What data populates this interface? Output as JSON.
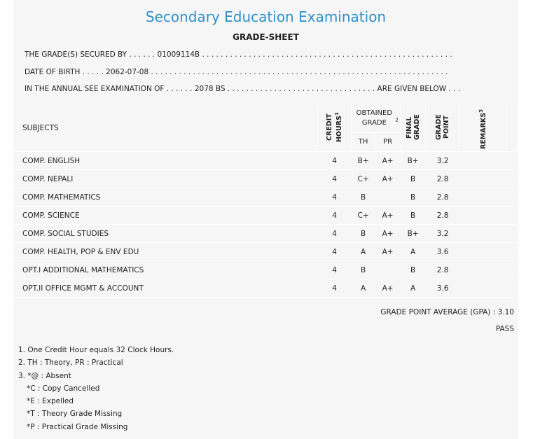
{
  "title": "Secondary Education Examination",
  "subtitle": "GRADE-SHEET",
  "info": {
    "line1": "THE GRADE(S) SECURED BY . . . . . . 01009114B . . . . . . . . . . . . . . . . . . . . . . . . . . . . . . . . . . . . . . . . . . . . . . . . . . . . . .",
    "line2": "DATE OF BIRTH . . . . . 2062-07-08 . . . . . . . . . . . . . . . . . . . . . . . . . . . . . . . . . . . . . . . . . . . . . . . . . . . . . . . . . . . . . . . .",
    "line3": "IN THE ANNUAL SEE EXAMINATION OF . . . . . . 2078 BS . . . . . . . . . . . . . . . . . . . . . . . . . . . . . . . . ARE GIVEN BELOW . . ."
  },
  "headers": {
    "subjects": "SUBJECTS",
    "credit_hours": "CREDIT HOURS",
    "credit_sup": "1",
    "obtained_grade": "OBTAINED GRADE",
    "obtained_sup": "2",
    "th": "TH",
    "pr": "PR",
    "final_grade": "FINAL GRADE",
    "grade_point": "GRADE POINT",
    "remarks": "REMARKS",
    "remarks_sup": "3"
  },
  "rows": [
    {
      "subject": "COMP. ENGLISH",
      "credit": "4",
      "th": "B+",
      "pr": "A+",
      "final": "B+",
      "gp": "3.2",
      "remarks": ""
    },
    {
      "subject": "COMP. NEPALI",
      "credit": "4",
      "th": "C+",
      "pr": "A+",
      "final": "B",
      "gp": "2.8",
      "remarks": ""
    },
    {
      "subject": "COMP. MATHEMATICS",
      "credit": "4",
      "th": "B",
      "pr": "",
      "final": "B",
      "gp": "2.8",
      "remarks": ""
    },
    {
      "subject": "COMP. SCIENCE",
      "credit": "4",
      "th": "C+",
      "pr": "A+",
      "final": "B",
      "gp": "2.8",
      "remarks": ""
    },
    {
      "subject": "COMP. SOCIAL STUDIES",
      "credit": "4",
      "th": "B",
      "pr": "A+",
      "final": "B+",
      "gp": "3.2",
      "remarks": ""
    },
    {
      "subject": "COMP. HEALTH, POP & ENV EDU",
      "credit": "4",
      "th": "A",
      "pr": "A+",
      "final": "A",
      "gp": "3.6",
      "remarks": ""
    },
    {
      "subject": "OPT.I ADDITIONAL MATHEMATICS",
      "credit": "4",
      "th": "B",
      "pr": "",
      "final": "B",
      "gp": "2.8",
      "remarks": ""
    },
    {
      "subject": "OPT.II OFFICE MGMT & ACCOUNT",
      "credit": "4",
      "th": "A",
      "pr": "A+",
      "final": "A",
      "gp": "3.6",
      "remarks": ""
    }
  ],
  "gpa_text": "GRADE POINT AVERAGE (GPA) : 3.10",
  "result": "PASS",
  "notes": [
    "1. One Credit Hour equals 32 Clock Hours.",
    "2. TH : Theory, PR : Practical",
    "3. *@ : Absent",
    "*C : Copy Cancelled",
    "*E : Expelled",
    "*T : Theory Grade Missing",
    "*P : Practical Grade Missing"
  ]
}
